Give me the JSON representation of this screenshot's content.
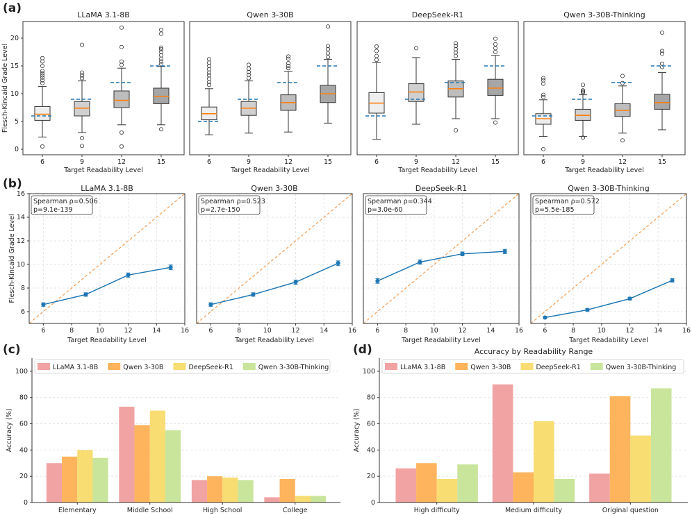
{
  "panel_letters": [
    "(a)",
    "(b)",
    "(c)",
    "(d)"
  ],
  "colors": {
    "median": "#ff7f0e",
    "target_dash": "#1f77b4",
    "line": "#1f77b4",
    "diag": "#f5a35c",
    "bars": [
      "#f1a3a3",
      "#fdb45d",
      "#f8dd73",
      "#c9e59b"
    ],
    "box_fills": [
      "#eeeeee",
      "#d0d0d0",
      "#bdbdbd",
      "#a6a6a6"
    ]
  },
  "chart_data": [
    {
      "type": "box",
      "panel": "(a)",
      "ylabel": "Flesch-Kincaid Grade Level",
      "xlabel": "Target Readability Level",
      "categories": [
        "6",
        "9",
        "12",
        "15"
      ],
      "ylim": [
        -1,
        23
      ],
      "yticks": [
        "0",
        "5",
        "10",
        "15",
        "20"
      ],
      "subplots": [
        {
          "title": "LLaMA 3.1-8B",
          "targets": [
            6,
            9,
            12,
            15
          ],
          "boxes": [
            {
              "whislo": 2.2,
              "q1": 5.2,
              "med": 6.3,
              "q3": 7.7,
              "whishi": 11.3,
              "fliers": [
                0.5,
                11.9,
                12.4,
                12.9,
                13.3,
                13.7,
                14.1,
                15.0,
                15.8,
                16.4
              ]
            },
            {
              "whislo": 3.0,
              "q1": 6.0,
              "med": 7.4,
              "q3": 8.6,
              "whishi": 12.3,
              "fliers": [
                0.6,
                2.0,
                12.8,
                13.3,
                13.8,
                18.8
              ]
            },
            {
              "whislo": 4.4,
              "q1": 7.5,
              "med": 8.8,
              "q3": 10.5,
              "whishi": 14.6,
              "fliers": [
                0.5,
                3.0,
                15.2,
                15.8,
                18.4,
                21.9
              ]
            },
            {
              "whislo": 4.4,
              "q1": 8.2,
              "med": 9.5,
              "q3": 11.0,
              "whishi": 14.9,
              "fliers": [
                3.6,
                15.3,
                15.8,
                16.3,
                16.9,
                17.5,
                18.0,
                18.3,
                20.8,
                21.5
              ]
            }
          ]
        },
        {
          "title": "Qwen 3-30B",
          "targets": [
            5,
            9,
            12,
            15
          ],
          "boxes": [
            {
              "whislo": 2.6,
              "q1": 5.3,
              "med": 6.4,
              "q3": 7.6,
              "whishi": 10.9,
              "fliers": [
                11.6,
                12.1,
                12.7,
                13.3,
                13.8,
                14.4,
                15.0,
                15.6,
                16.2
              ]
            },
            {
              "whislo": 2.9,
              "q1": 6.1,
              "med": 7.4,
              "q3": 8.6,
              "whishi": 12.3,
              "fliers": [
                12.8,
                13.4,
                13.9,
                14.5,
                15.2
              ]
            },
            {
              "whislo": 3.1,
              "q1": 7.0,
              "med": 8.4,
              "q3": 9.8,
              "whishi": 14.0,
              "fliers": [
                14.6,
                15.0,
                15.5,
                16.3,
                16.7
              ]
            },
            {
              "whislo": 4.7,
              "q1": 8.4,
              "med": 10.0,
              "q3": 11.5,
              "whishi": 16.2,
              "fliers": [
                16.6,
                17.3,
                18.0,
                18.6,
                22.1
              ]
            }
          ]
        },
        {
          "title": "DeepSeek-R1",
          "targets": [
            6,
            9,
            12,
            15
          ],
          "boxes": [
            {
              "whislo": 1.8,
              "q1": 6.5,
              "med": 8.3,
              "q3": 10.2,
              "whishi": 15.6,
              "fliers": [
                16.1,
                16.8,
                17.7,
                18.5
              ]
            },
            {
              "whislo": 4.5,
              "q1": 8.6,
              "med": 10.3,
              "q3": 11.8,
              "whishi": 16.5,
              "fliers": [
                18.2
              ]
            },
            {
              "whislo": 5.5,
              "q1": 9.4,
              "med": 10.9,
              "q3": 12.3,
              "whishi": 16.2,
              "fliers": [
                3.4,
                16.8,
                17.4,
                18.0,
                18.6,
                19.1
              ]
            },
            {
              "whislo": 5.5,
              "q1": 9.7,
              "med": 11.0,
              "q3": 12.6,
              "whishi": 16.9,
              "fliers": [
                4.8,
                17.5,
                18.2,
                18.9,
                19.9
              ]
            }
          ]
        },
        {
          "title": "Qwen 3-30B-Thinking",
          "targets": [
            6,
            9,
            12,
            15
          ],
          "boxes": [
            {
              "whislo": 2.3,
              "q1": 4.5,
              "med": 5.5,
              "q3": 6.4,
              "whishi": 8.9,
              "fliers": [
                0.0,
                9.4,
                9.8,
                11.8,
                12.4,
                12.8
              ]
            },
            {
              "whislo": 2.3,
              "q1": 5.2,
              "med": 6.1,
              "q3": 7.2,
              "whishi": 9.8,
              "fliers": [
                2.1,
                10.2,
                10.4,
                10.6,
                11.6
              ]
            },
            {
              "whislo": 2.9,
              "q1": 5.9,
              "med": 7.0,
              "q3": 8.2,
              "whishi": 11.4,
              "fliers": [
                1.6,
                11.9,
                13.2
              ]
            },
            {
              "whislo": 3.5,
              "q1": 7.2,
              "med": 8.4,
              "q3": 9.9,
              "whishi": 13.8,
              "fliers": [
                14.8,
                15.4,
                17.2,
                17.7,
                21.0
              ]
            }
          ]
        }
      ]
    },
    {
      "type": "line",
      "panel": "(b)",
      "ylabel": "Flesch-Kincaid Grade Level",
      "xlabel": "Target Readability Level",
      "xlim": [
        5,
        16
      ],
      "ylim": [
        5,
        16
      ],
      "xticks": [
        "6",
        "8",
        "10",
        "12",
        "14",
        "16"
      ],
      "yticks": [
        "6",
        "8",
        "10",
        "12",
        "14",
        "16"
      ],
      "x": [
        6,
        9,
        12,
        15
      ],
      "subplots": [
        {
          "title": "LLaMA 3.1-8B",
          "spearman": "Spearman ρ=0.506",
          "pvalue": "p=9.1e-139",
          "y": [
            6.6,
            7.45,
            9.1,
            9.75
          ],
          "err": [
            0.15,
            0.15,
            0.18,
            0.2
          ]
        },
        {
          "title": "Qwen 3-30B",
          "spearman": "Spearman ρ=0.523",
          "pvalue": "p=2.7e-150",
          "y": [
            6.6,
            7.45,
            8.5,
            10.1
          ],
          "err": [
            0.15,
            0.15,
            0.18,
            0.2
          ]
        },
        {
          "title": "DeepSeek-R1",
          "spearman": "Spearman ρ=0.344",
          "pvalue": "p=3.0e-60",
          "y": [
            8.6,
            10.2,
            10.9,
            11.1
          ],
          "err": [
            0.2,
            0.18,
            0.16,
            0.18
          ]
        },
        {
          "title": "Qwen 3-30B-Thinking",
          "spearman": "Spearman ρ=0.572",
          "pvalue": "p=5.5e-185",
          "y": [
            5.5,
            6.15,
            7.1,
            8.65
          ],
          "err": [
            0.1,
            0.1,
            0.12,
            0.15
          ]
        }
      ]
    },
    {
      "type": "bar",
      "panel": "(c)",
      "title": "",
      "ylabel": "Accuracy (%)",
      "xlabel": "",
      "ylim": [
        0,
        110
      ],
      "yticks": [
        "0",
        "20",
        "40",
        "60",
        "80",
        "100"
      ],
      "categories": [
        "Elementary",
        "Middle School",
        "High School",
        "College"
      ],
      "series": [
        {
          "name": "LLaMA 3.1-8B",
          "values": [
            30,
            73,
            17,
            4
          ]
        },
        {
          "name": "Qwen 3-30B",
          "values": [
            35,
            59,
            20,
            18
          ]
        },
        {
          "name": "DeepSeek-R1",
          "values": [
            40,
            70,
            19,
            5
          ]
        },
        {
          "name": "Qwen 3-30B-Thinking",
          "values": [
            34,
            55,
            17,
            5
          ]
        }
      ]
    },
    {
      "type": "bar",
      "panel": "(d)",
      "title": "Accuracy by Readability Range",
      "ylabel": "Accuracy (%)",
      "xlabel": "",
      "ylim": [
        0,
        110
      ],
      "yticks": [
        "0",
        "20",
        "40",
        "60",
        "80",
        "100"
      ],
      "categories": [
        "High difficulty",
        "Medium difficulty",
        "Original question"
      ],
      "series": [
        {
          "name": "LLaMA 3.1-8B",
          "values": [
            26,
            90,
            22
          ]
        },
        {
          "name": "Qwen 3-30B",
          "values": [
            30,
            23,
            81
          ]
        },
        {
          "name": "DeepSeek-R1",
          "values": [
            18,
            62,
            51
          ]
        },
        {
          "name": "Qwen 3-30B-Thinking",
          "values": [
            29,
            18,
            87
          ]
        }
      ]
    }
  ]
}
